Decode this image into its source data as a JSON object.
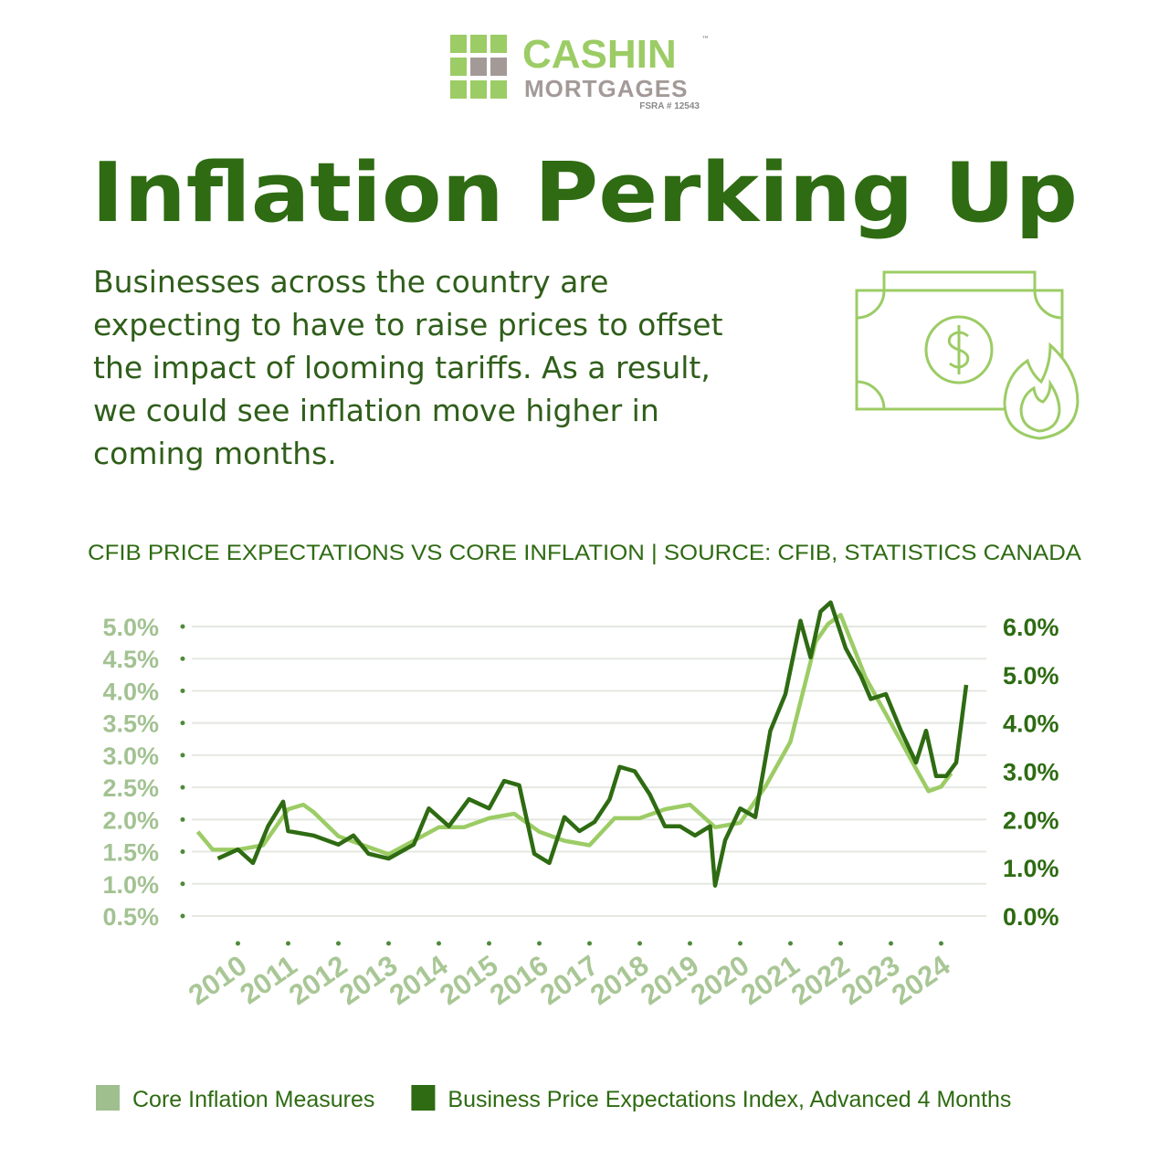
{
  "header": {
    "brand": "CASHIN",
    "trademark": "™",
    "sub_brand": "MORTGAGES",
    "license": "FSRA # 12543",
    "title": "Inflation Perking Up",
    "body": [
      "Businesses across the country are",
      "expecting to have to raise prices to offset",
      "the impact of looming tariffs. As a result,",
      "we could see inflation move higher in",
      "coming months."
    ]
  },
  "chart_data": {
    "type": "line",
    "title": "CFIB PRICE EXPECTATIONS VS CORE INFLATION | SOURCE: CFIB, STATISTICS CANADA",
    "xlim": [
      2008.9,
      2024.9
    ],
    "xticks": [
      2010,
      2011,
      2012,
      2013,
      2014,
      2015,
      2016,
      2017,
      2018,
      2019,
      2020,
      2021,
      2022,
      2023,
      2024
    ],
    "ylim": [
      0.5,
      5.0
    ],
    "yticks": [
      {
        "value": 0.5,
        "label": "0.5%"
      },
      {
        "value": 1.0,
        "label": "1.0%"
      },
      {
        "value": 1.5,
        "label": "1.5%"
      },
      {
        "value": 2.0,
        "label": "2.0%"
      },
      {
        "value": 2.5,
        "label": "2.5%"
      },
      {
        "value": 3.0,
        "label": "3.0%"
      },
      {
        "value": 3.5,
        "label": "3.5%"
      },
      {
        "value": 4.0,
        "label": "4.0%"
      },
      {
        "value": 4.5,
        "label": "4.5%"
      },
      {
        "value": 5.0,
        "label": "5.0%"
      }
    ],
    "y2lim": [
      0.0,
      6.0
    ],
    "y2ticks": [
      {
        "value": 0.0,
        "label": "0.0%"
      },
      {
        "value": 1.0,
        "label": "1.0%"
      },
      {
        "value": 2.0,
        "label": "2.0%"
      },
      {
        "value": 3.0,
        "label": "3.0%"
      },
      {
        "value": 4.0,
        "label": "4.0%"
      },
      {
        "value": 5.0,
        "label": "5.0%"
      },
      {
        "value": 6.0,
        "label": "6.0%"
      }
    ],
    "grid": true,
    "legend": "bottom",
    "series": [
      {
        "name": "Core Inflation Measures",
        "color": "#9ccc65",
        "legend_color": "#9fbf8f",
        "x": [
          2009.2,
          2009.5,
          2010,
          2010.5,
          2011,
          2011.3,
          2011.5,
          2012,
          2012.5,
          2013,
          2013.5,
          2014,
          2014.5,
          2015,
          2015.5,
          2016,
          2016.5,
          2017,
          2017.5,
          2018,
          2018.5,
          2019,
          2019.5,
          2020,
          2020.5,
          2021,
          2021.5,
          2021.75,
          2022,
          2022.5,
          2023,
          2023.5,
          2023.75,
          2024,
          2024.2
        ],
        "values": [
          1.81,
          1.53,
          1.53,
          1.6,
          2.16,
          2.23,
          2.12,
          1.74,
          1.6,
          1.46,
          1.67,
          1.88,
          1.88,
          2.02,
          2.09,
          1.81,
          1.67,
          1.6,
          2.02,
          2.02,
          2.16,
          2.23,
          1.88,
          1.95,
          2.51,
          3.21,
          4.76,
          5.04,
          5.18,
          4.2,
          3.5,
          2.79,
          2.44,
          2.51,
          2.72
        ]
      },
      {
        "name": "Business Price Expectations Index, Advanced 4 Months",
        "color": "#2e6b12",
        "legend_color": "#2e6b12",
        "axis": "y2",
        "x": [
          2009.6,
          2010,
          2010.3,
          2010.6,
          2010.9,
          2011,
          2011.5,
          2012,
          2012.3,
          2012.6,
          2013,
          2013.5,
          2013.8,
          2014.2,
          2014.6,
          2015,
          2015.3,
          2015.6,
          2015.9,
          2016.2,
          2016.5,
          2016.8,
          2017.1,
          2017.4,
          2017.6,
          2017.9,
          2018.2,
          2018.5,
          2018.8,
          2019.1,
          2019.4,
          2019.5,
          2019.7,
          2020,
          2020.3,
          2020.6,
          2020.9,
          2021.2,
          2021.4,
          2021.6,
          2021.8,
          2022.1,
          2022.4,
          2022.6,
          2022.9,
          2023.2,
          2023.5,
          2023.7,
          2023.9,
          2024.1,
          2024.3,
          2024.5
        ],
        "values": [
          1.19,
          1.38,
          1.1,
          1.86,
          2.37,
          1.76,
          1.67,
          1.48,
          1.67,
          1.29,
          1.19,
          1.48,
          2.23,
          1.86,
          2.42,
          2.23,
          2.8,
          2.71,
          1.29,
          1.1,
          2.05,
          1.76,
          1.95,
          2.42,
          3.09,
          3.0,
          2.52,
          1.86,
          1.86,
          1.67,
          1.86,
          0.63,
          1.57,
          2.23,
          2.05,
          3.84,
          4.6,
          6.12,
          5.36,
          6.31,
          6.5,
          5.55,
          4.98,
          4.5,
          4.6,
          3.84,
          3.18,
          3.84,
          2.9,
          2.9,
          3.18,
          4.79
        ]
      }
    ]
  }
}
